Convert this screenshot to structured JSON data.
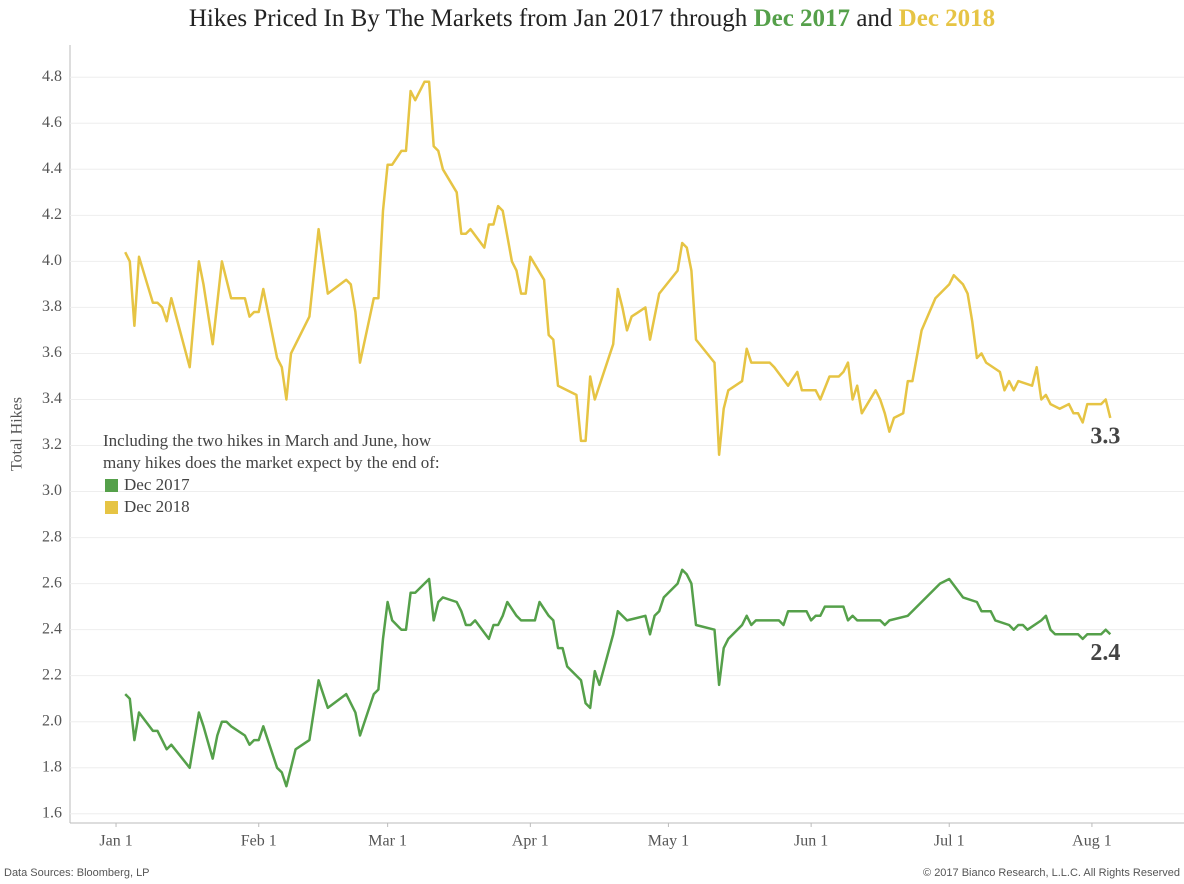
{
  "chart_data": {
    "type": "line",
    "title_parts": [
      "Hikes Priced In By The Markets from Jan 2017 through",
      "Dec 2017",
      "and",
      "Dec 2018"
    ],
    "ylabel": "Total Hikes",
    "annotation": [
      "Including the two hikes in March and June, how",
      "many hikes does the market expect by the end of:"
    ],
    "source": "Data Sources: Bloomberg, LP",
    "copyright": "© 2017 Bianco Research, L.L.C. All Rights Reserved",
    "xlim": [
      -10,
      232
    ],
    "xticks": [
      {
        "value": 0,
        "label": "Jan 1"
      },
      {
        "value": 31,
        "label": "Feb 1"
      },
      {
        "value": 59,
        "label": "Mar 1"
      },
      {
        "value": 90,
        "label": "Apr 1"
      },
      {
        "value": 120,
        "label": "May 1"
      },
      {
        "value": 151,
        "label": "Jun 1"
      },
      {
        "value": 181,
        "label": "Jul 1"
      },
      {
        "value": 212,
        "label": "Aug 1"
      }
    ],
    "ylim": [
      1.56,
      4.94
    ],
    "yticks": [
      1.6,
      1.8,
      {
        "value": 2,
        "label": "2.0"
      },
      2.2,
      2.4,
      2.6,
      2.8,
      {
        "value": 3,
        "label": "3.0"
      },
      3.2,
      3.4,
      3.6,
      3.8,
      {
        "value": 4,
        "label": "4.0"
      },
      4.2,
      4.4,
      4.6,
      4.8
    ],
    "grid": true,
    "series": [
      {
        "name": "Dec 2017",
        "color": "#55a04a",
        "end_label": "2.4",
        "x": [
          2,
          3,
          4,
          5,
          8,
          9,
          10,
          11,
          12,
          16,
          18,
          19,
          21,
          22,
          23,
          24,
          25,
          28,
          29,
          30,
          31,
          32,
          35,
          36,
          37,
          38,
          39,
          42,
          44,
          46,
          50,
          52,
          53,
          56,
          57,
          58,
          59,
          60,
          62,
          63,
          64,
          65,
          68,
          69,
          70,
          71,
          74,
          75,
          76,
          77,
          78,
          81,
          82,
          83,
          84,
          85,
          87,
          88,
          91,
          92,
          94,
          95,
          96,
          97,
          98,
          101,
          102,
          103,
          104,
          105,
          108,
          109,
          111,
          115,
          116,
          117,
          118,
          119,
          122,
          123,
          124,
          125,
          126,
          130,
          131,
          132,
          133,
          136,
          137,
          138,
          139,
          144,
          145,
          146,
          150,
          151,
          152,
          153,
          154,
          158,
          159,
          160,
          161,
          166,
          167,
          168,
          172,
          179,
          181,
          184,
          187,
          188,
          190,
          191,
          194,
          195,
          196,
          197,
          198,
          201,
          202,
          203,
          204,
          209,
          210,
          211,
          214,
          215,
          216
        ],
        "values": [
          2.12,
          2.1,
          1.92,
          2.04,
          1.96,
          1.96,
          1.92,
          1.88,
          1.9,
          1.8,
          2.04,
          1.98,
          1.84,
          1.94,
          2.0,
          2.0,
          1.98,
          1.94,
          1.9,
          1.92,
          1.92,
          1.98,
          1.8,
          1.78,
          1.72,
          1.8,
          1.88,
          1.92,
          2.18,
          2.06,
          2.12,
          2.04,
          1.94,
          2.12,
          2.14,
          2.36,
          2.52,
          2.44,
          2.4,
          2.4,
          2.56,
          2.56,
          2.62,
          2.44,
          2.52,
          2.54,
          2.52,
          2.48,
          2.42,
          2.42,
          2.44,
          2.36,
          2.42,
          2.42,
          2.46,
          2.52,
          2.46,
          2.44,
          2.44,
          2.52,
          2.46,
          2.44,
          2.32,
          2.32,
          2.24,
          2.18,
          2.08,
          2.06,
          2.22,
          2.16,
          2.38,
          2.48,
          2.44,
          2.46,
          2.38,
          2.46,
          2.48,
          2.54,
          2.6,
          2.66,
          2.64,
          2.6,
          2.42,
          2.4,
          2.16,
          2.32,
          2.36,
          2.42,
          2.46,
          2.42,
          2.44,
          2.44,
          2.42,
          2.48,
          2.48,
          2.44,
          2.46,
          2.46,
          2.5,
          2.5,
          2.44,
          2.46,
          2.44,
          2.44,
          2.42,
          2.44,
          2.46,
          2.6,
          2.62,
          2.54,
          2.52,
          2.48,
          2.48,
          2.44,
          2.42,
          2.4,
          2.42,
          2.42,
          2.4,
          2.44,
          2.46,
          2.4,
          2.38,
          2.38,
          2.36,
          2.38,
          2.38,
          2.4,
          2.38
        ]
      },
      {
        "name": "Dec 2018",
        "color": "#e6c444",
        "end_label": "3.3",
        "x": [
          2,
          3,
          4,
          5,
          8,
          9,
          10,
          11,
          12,
          16,
          18,
          19,
          21,
          23,
          24,
          25,
          28,
          29,
          30,
          31,
          32,
          35,
          36,
          37,
          38,
          42,
          44,
          46,
          50,
          51,
          52,
          53,
          56,
          57,
          58,
          59,
          60,
          62,
          63,
          64,
          65,
          67,
          68,
          69,
          70,
          71,
          74,
          75,
          76,
          77,
          80,
          81,
          82,
          83,
          84,
          86,
          87,
          88,
          89,
          90,
          93,
          94,
          95,
          96,
          100,
          101,
          102,
          103,
          104,
          108,
          109,
          110,
          111,
          112,
          115,
          116,
          117,
          118,
          122,
          123,
          124,
          125,
          126,
          130,
          131,
          132,
          133,
          136,
          137,
          138,
          142,
          143,
          146,
          148,
          149,
          152,
          153,
          155,
          157,
          158,
          159,
          160,
          161,
          162,
          165,
          166,
          167,
          168,
          169,
          171,
          172,
          173,
          175,
          178,
          180,
          181,
          182,
          184,
          185,
          186,
          187,
          188,
          189,
          192,
          193,
          194,
          195,
          196,
          199,
          200,
          201,
          202,
          203,
          205,
          207,
          208,
          209,
          210,
          211,
          214,
          215,
          216
        ],
        "values": [
          4.04,
          4.0,
          3.72,
          4.02,
          3.82,
          3.82,
          3.8,
          3.74,
          3.84,
          3.54,
          4.0,
          3.9,
          3.64,
          4.0,
          3.92,
          3.84,
          3.84,
          3.76,
          3.78,
          3.78,
          3.88,
          3.58,
          3.54,
          3.4,
          3.6,
          3.76,
          4.14,
          3.86,
          3.92,
          3.9,
          3.78,
          3.56,
          3.84,
          3.84,
          4.22,
          4.42,
          4.42,
          4.48,
          4.48,
          4.74,
          4.7,
          4.78,
          4.78,
          4.5,
          4.48,
          4.4,
          4.3,
          4.12,
          4.12,
          4.14,
          4.06,
          4.16,
          4.16,
          4.24,
          4.22,
          4.0,
          3.96,
          3.86,
          3.86,
          4.02,
          3.92,
          3.68,
          3.66,
          3.46,
          3.42,
          3.22,
          3.22,
          3.5,
          3.4,
          3.64,
          3.88,
          3.8,
          3.7,
          3.76,
          3.8,
          3.66,
          3.76,
          3.86,
          3.96,
          4.08,
          4.06,
          3.96,
          3.66,
          3.56,
          3.16,
          3.36,
          3.44,
          3.48,
          3.62,
          3.56,
          3.56,
          3.54,
          3.46,
          3.52,
          3.44,
          3.44,
          3.4,
          3.5,
          3.5,
          3.52,
          3.56,
          3.4,
          3.46,
          3.34,
          3.44,
          3.4,
          3.34,
          3.26,
          3.32,
          3.34,
          3.48,
          3.48,
          3.7,
          3.84,
          3.88,
          3.9,
          3.94,
          3.9,
          3.86,
          3.74,
          3.58,
          3.6,
          3.56,
          3.52,
          3.44,
          3.48,
          3.44,
          3.48,
          3.46,
          3.54,
          3.4,
          3.42,
          3.38,
          3.36,
          3.38,
          3.34,
          3.34,
          3.3,
          3.38,
          3.38,
          3.4,
          3.32
        ]
      }
    ]
  }
}
